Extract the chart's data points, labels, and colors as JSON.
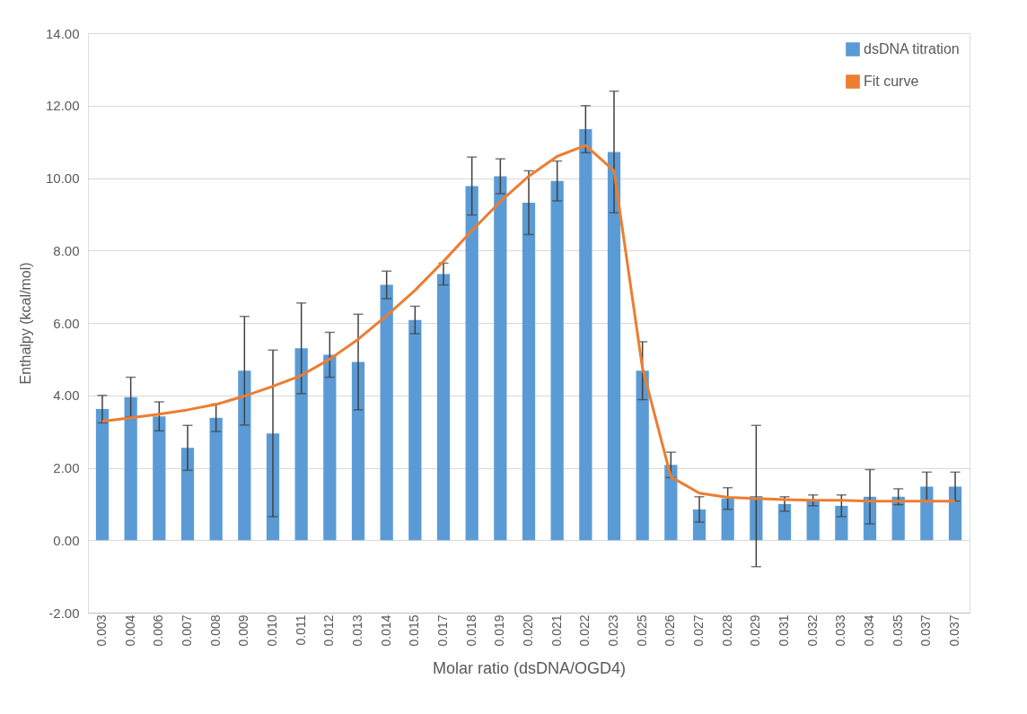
{
  "chart_data": {
    "type": "bar",
    "xlabel": "Molar ratio (dsDNA/OGD4)",
    "ylabel": "Enthalpy (kcal/mol)",
    "categories": [
      "0.003",
      "0.004",
      "0.006",
      "0.007",
      "0.008",
      "0.009",
      "0.010",
      "0.011",
      "0.012",
      "0.013",
      "0.014",
      "0.015",
      "0.017",
      "0.018",
      "0.019",
      "0.020",
      "0.021",
      "0.022",
      "0.023",
      "0.025",
      "0.026",
      "0.027",
      "0.028",
      "0.029",
      "0.031",
      "0.032",
      "0.033",
      "0.034",
      "0.035",
      "0.037",
      "0.037"
    ],
    "series": [
      {
        "name": "dsDNA titration",
        "color": "#5b9bd5",
        "values": [
          3.62,
          3.95,
          3.42,
          2.55,
          3.38,
          4.68,
          2.95,
          5.3,
          5.12,
          4.92,
          7.05,
          6.08,
          7.35,
          9.78,
          10.05,
          9.32,
          9.92,
          11.35,
          10.72,
          4.68,
          2.08,
          0.85,
          1.15,
          1.22,
          1.0,
          1.1,
          0.95,
          1.2,
          1.2,
          1.48,
          1.48
        ],
        "errors": [
          0.38,
          0.55,
          0.4,
          0.62,
          0.38,
          1.5,
          2.3,
          1.25,
          0.62,
          1.32,
          0.38,
          0.38,
          0.3,
          0.8,
          0.48,
          0.88,
          0.55,
          0.65,
          1.68,
          0.8,
          0.35,
          0.35,
          0.3,
          1.95,
          0.2,
          0.15,
          0.3,
          0.75,
          0.22,
          0.4,
          0.4
        ]
      },
      {
        "name": "Fit curve",
        "type": "line",
        "color": "#ed7d31",
        "values": [
          3.28,
          3.38,
          3.48,
          3.6,
          3.75,
          3.98,
          4.25,
          4.55,
          5.0,
          5.55,
          6.2,
          6.9,
          7.7,
          8.55,
          9.35,
          10.05,
          10.6,
          10.9,
          10.2,
          4.75,
          1.75,
          1.3,
          1.18,
          1.15,
          1.12,
          1.1,
          1.1,
          1.08,
          1.08,
          1.08,
          1.08
        ]
      }
    ],
    "ylim": [
      -2,
      14
    ],
    "yticks": [
      {
        "value": -2,
        "label": "-2.00"
      },
      {
        "value": 0,
        "label": "0.00"
      },
      {
        "value": 2,
        "label": "2.00"
      },
      {
        "value": 4,
        "label": "4.00"
      },
      {
        "value": 6,
        "label": "6.00"
      },
      {
        "value": 8,
        "label": "8.00"
      },
      {
        "value": 10,
        "label": "10.00"
      },
      {
        "value": 12,
        "label": "12.00"
      },
      {
        "value": 14,
        "label": "14.00"
      }
    ],
    "grid": "y",
    "legend": "top right",
    "marker": "none",
    "line_style": "solid"
  }
}
